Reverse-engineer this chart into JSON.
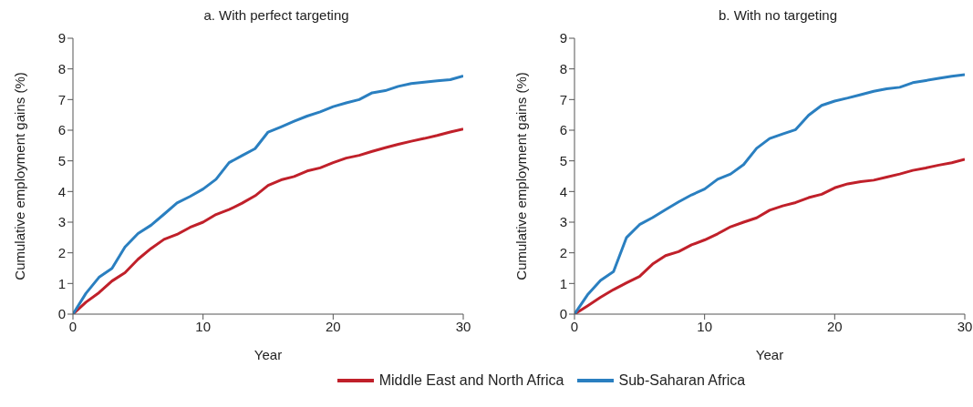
{
  "chart_data": [
    {
      "type": "line",
      "title": "a. With perfect targeting",
      "xlabel": "Year",
      "ylabel": "Cumulative employment gains (%)",
      "x": [
        0,
        1,
        2,
        3,
        4,
        5,
        6,
        7,
        8,
        9,
        10,
        11,
        12,
        13,
        14,
        15,
        16,
        17,
        18,
        19,
        20,
        21,
        22,
        23,
        24,
        25,
        26,
        27,
        28,
        29,
        30
      ],
      "series": [
        {
          "name": "Middle East and North Africa",
          "color": "#c0202a",
          "values": [
            0,
            0.39,
            0.7,
            1.08,
            1.35,
            1.79,
            2.14,
            2.44,
            2.6,
            2.83,
            3.0,
            3.25,
            3.41,
            3.62,
            3.86,
            4.2,
            4.38,
            4.49,
            4.67,
            4.77,
            4.94,
            5.09,
            5.18,
            5.31,
            5.43,
            5.54,
            5.64,
            5.73,
            5.83,
            5.94,
            6.04
          ]
        },
        {
          "name": "Sub-Saharan Africa",
          "color": "#2a7fc0",
          "values": [
            0,
            0.68,
            1.2,
            1.49,
            2.19,
            2.63,
            2.9,
            3.26,
            3.63,
            3.84,
            4.08,
            4.4,
            4.94,
            5.17,
            5.4,
            5.94,
            6.11,
            6.29,
            6.46,
            6.6,
            6.77,
            6.89,
            7.0,
            7.22,
            7.29,
            7.43,
            7.52,
            7.57,
            7.61,
            7.65,
            7.77
          ]
        }
      ],
      "xlim": [
        0,
        30
      ],
      "xticks": [
        0,
        10,
        20,
        30
      ],
      "ylim": [
        0,
        9
      ],
      "yticks": [
        0,
        1,
        2,
        3,
        4,
        5,
        6,
        7,
        8,
        9
      ],
      "grid": false,
      "legend": "bottom",
      "marker": "none",
      "line_style": "solid"
    },
    {
      "type": "line",
      "title": "b. With no targeting",
      "xlabel": "Year",
      "ylabel": "Cumulative employment gains (%)",
      "x": [
        0,
        1,
        2,
        3,
        4,
        5,
        6,
        7,
        8,
        9,
        10,
        11,
        12,
        13,
        14,
        15,
        16,
        17,
        18,
        19,
        20,
        21,
        22,
        23,
        24,
        25,
        26,
        27,
        28,
        29,
        30
      ],
      "series": [
        {
          "name": "Middle East and North Africa",
          "color": "#c0202a",
          "values": [
            0,
            0.27,
            0.55,
            0.8,
            1.02,
            1.23,
            1.63,
            1.91,
            2.04,
            2.26,
            2.42,
            2.62,
            2.85,
            3.0,
            3.14,
            3.39,
            3.53,
            3.64,
            3.8,
            3.91,
            4.12,
            4.25,
            4.32,
            4.37,
            4.47,
            4.57,
            4.69,
            4.77,
            4.86,
            4.94,
            5.05
          ]
        },
        {
          "name": "Sub-Saharan Africa",
          "color": "#2a7fc0",
          "values": [
            0,
            0.63,
            1.1,
            1.39,
            2.5,
            2.92,
            3.15,
            3.41,
            3.66,
            3.89,
            4.08,
            4.4,
            4.57,
            4.88,
            5.41,
            5.73,
            5.88,
            6.02,
            6.49,
            6.81,
            6.95,
            7.05,
            7.16,
            7.27,
            7.35,
            7.4,
            7.55,
            7.62,
            7.69,
            7.76,
            7.81
          ]
        }
      ],
      "xlim": [
        0,
        30
      ],
      "xticks": [
        0,
        10,
        20,
        30
      ],
      "ylim": [
        0,
        9
      ],
      "yticks": [
        0,
        1,
        2,
        3,
        4,
        5,
        6,
        7,
        8,
        9
      ],
      "grid": false,
      "legend": "bottom",
      "marker": "none",
      "line_style": "solid"
    }
  ]
}
